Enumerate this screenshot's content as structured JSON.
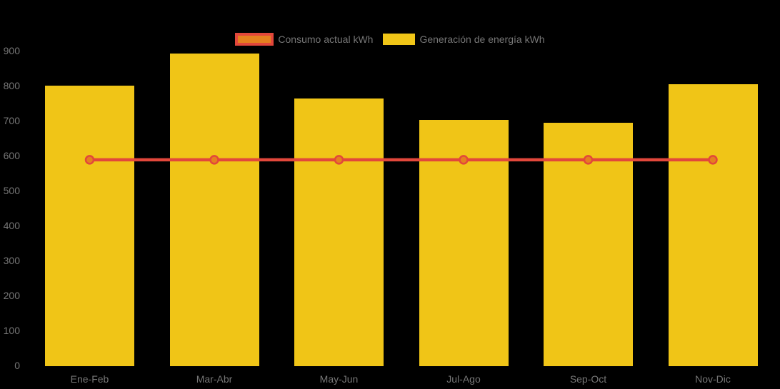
{
  "chart_data": {
    "type": "bar",
    "subtype": "bar-with-line-overlay",
    "title": "",
    "xlabel": "",
    "ylabel": "",
    "categories": [
      "Ene-Feb",
      "Mar-Abr",
      "May-Jun",
      "Jul-Ago",
      "Sep-Oct",
      "Nov-Dic"
    ],
    "series": [
      {
        "name": "Consumo actual kWh",
        "type": "line",
        "color": "#E2473B",
        "marker_fill": "#E5801F",
        "values": [
          588,
          588,
          588,
          588,
          588,
          588
        ]
      },
      {
        "name": "Generación de energía kWh",
        "type": "bar",
        "color": "#F0C517",
        "values": [
          799,
          892,
          764,
          703,
          694,
          804
        ]
      }
    ],
    "ylim": [
      0,
      940
    ],
    "yticks": [
      0,
      100,
      200,
      300,
      400,
      500,
      600,
      700,
      800,
      900
    ],
    "grid": false,
    "legend_position": "top-center",
    "background_color": "#000000",
    "text_color": "#767676"
  }
}
